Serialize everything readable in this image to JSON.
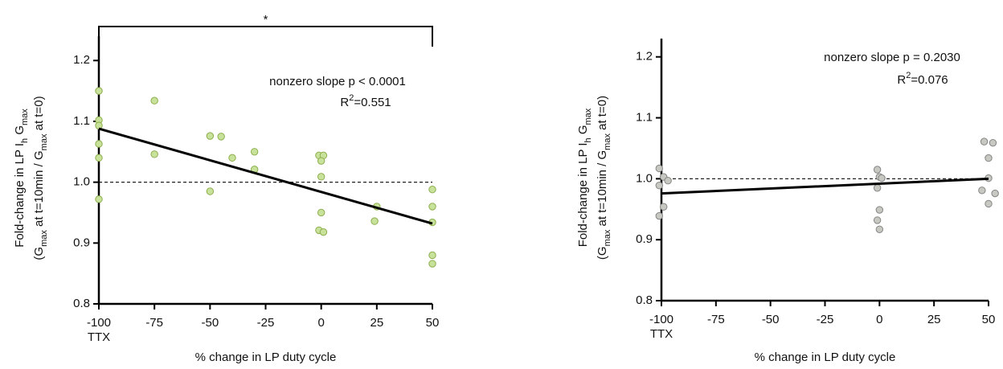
{
  "chart_data": [
    {
      "type": "scatter",
      "significance": "*",
      "annotation": "nonzero slope p < 0.0001",
      "r2": [
        "R",
        "2",
        "=0.551"
      ],
      "xlabel": "% change in LP duty cycle",
      "x_annotation": "TTX",
      "ylabel": [
        [
          "Fold-change in LP I",
          "h",
          " G",
          "max"
        ],
        [
          "(G",
          "max",
          " at t=10min / G",
          "max",
          " at t=0)"
        ]
      ],
      "xlim": [
        -100,
        50
      ],
      "xticks": [
        -100,
        -75,
        -50,
        -25,
        0,
        25,
        50
      ],
      "ylim": [
        0.8,
        1.24
      ],
      "yticks": [
        0.8,
        0.9,
        {
          "value": 1,
          "label": "1.0"
        },
        1.1,
        1.2
      ],
      "hline": 1,
      "fit": {
        "x": [
          -100,
          50
        ],
        "values": [
          1.088,
          0.932
        ]
      },
      "series": [
        {
          "color": "#c9e29b",
          "edgecolor": "#8cae4c",
          "x": [
            -100,
            -100,
            -100,
            -100,
            -100,
            -100,
            -75,
            -75,
            -50,
            -45,
            -50,
            -40,
            -30,
            -30,
            -1,
            1,
            0,
            0,
            0,
            -1,
            1,
            25,
            24,
            50,
            50,
            50,
            50,
            50
          ],
          "values": [
            1.15,
            1.102,
            1.093,
            1.063,
            1.04,
            0.972,
            1.134,
            1.046,
            1.076,
            1.075,
            0.985,
            1.04,
            1.05,
            1.021,
            1.044,
            1.044,
            1.035,
            1.009,
            0.95,
            0.921,
            0.918,
            0.96,
            0.936,
            0.988,
            0.96,
            0.934,
            0.88,
            0.866
          ]
        }
      ]
    },
    {
      "type": "scatter",
      "annotation": "nonzero slope p = 0.2030",
      "r2": [
        "R",
        "2",
        "=0.076"
      ],
      "xlabel": "% change in LP duty cycle",
      "x_annotation": "TTX",
      "ylabel": [
        [
          "Fold-change in LP I",
          "h",
          " G",
          "max"
        ],
        [
          "(G",
          "max",
          " at t=10min / G",
          "max",
          " at t=0)"
        ]
      ],
      "xlim": [
        -100,
        50
      ],
      "xticks": [
        -100,
        -75,
        -50,
        -25,
        0,
        25,
        50
      ],
      "ylim": [
        0.8,
        1.23
      ],
      "yticks": [
        0.8,
        0.9,
        {
          "value": 1,
          "label": "1.0"
        },
        1.1,
        1.2
      ],
      "hline": 1,
      "fit": {
        "x": [
          -100,
          50
        ],
        "values": [
          0.976,
          1.0
        ]
      },
      "series": [
        {
          "color": "#c8c8c2",
          "edgecolor": "#858585",
          "x": [
            -101,
            -99,
            -97,
            -101,
            -99,
            -101,
            -1,
            0,
            1,
            -1,
            0,
            -1,
            0,
            48,
            52,
            50,
            50,
            47,
            53,
            50
          ],
          "values": [
            1.017,
            1.003,
            0.997,
            0.989,
            0.954,
            0.939,
            1.015,
            1.003,
            1.001,
            0.985,
            0.949,
            0.932,
            0.917,
            1.061,
            1.059,
            1.034,
            1.001,
            0.981,
            0.976,
            0.959
          ]
        }
      ]
    }
  ]
}
